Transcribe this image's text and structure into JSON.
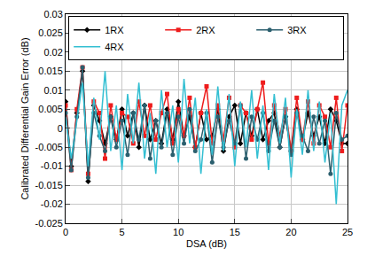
{
  "chart_data": {
    "type": "line",
    "x_label": "DSA (dB)",
    "y_label": "Calibrated Differential Gain Error (dB)",
    "x": [
      0,
      0.5,
      1,
      1.5,
      2,
      2.5,
      3,
      3.5,
      4,
      4.5,
      5,
      5.5,
      6,
      6.5,
      7,
      7.5,
      8,
      8.5,
      9,
      9.5,
      10,
      10.5,
      11,
      11.5,
      12,
      12.5,
      13,
      13.5,
      14,
      14.5,
      15,
      15.5,
      16,
      16.5,
      17,
      17.5,
      18,
      18.5,
      19,
      19.5,
      20,
      20.5,
      21,
      21.5,
      22,
      22.5,
      23,
      23.5,
      24,
      24.5,
      25
    ],
    "series": [
      {
        "name": "1RX",
        "color": "#000000",
        "marker": "diamond",
        "values": [
          0.007,
          -0.01,
          0.004,
          0.015,
          -0.014,
          0.006,
          0.002,
          -0.004,
          0.003,
          -0.003,
          0.005,
          -0.002,
          0.004,
          -0.005,
          0.006,
          -0.003,
          0.002,
          -0.004,
          0.005,
          -0.003,
          0.007,
          -0.002,
          0.003,
          -0.005,
          0.004,
          -0.003,
          -0.002,
          0.005,
          -0.006,
          0.003,
          0.006,
          -0.004,
          0.004,
          -0.002,
          0.005,
          -0.003,
          0.002,
          0.004,
          -0.005,
          0.003,
          -0.006,
          0.005,
          -0.003,
          0.004,
          -0.002,
          0.003,
          -0.004,
          0.005,
          0.002,
          -0.004,
          -0.004
        ]
      },
      {
        "name": "2RX",
        "color": "#ee1c1c",
        "marker": "square",
        "values": [
          0.006,
          -0.011,
          0.005,
          0.016,
          -0.012,
          0.007,
          0.004,
          -0.008,
          0.006,
          -0.003,
          0.004,
          0.003,
          -0.004,
          0.007,
          -0.002,
          0.006,
          -0.003,
          0.004,
          0.009,
          -0.004,
          0.005,
          -0.002,
          0.008,
          -0.005,
          0.004,
          0.011,
          -0.004,
          0.006,
          -0.003,
          0.008,
          -0.005,
          0.006,
          0.004,
          -0.003,
          0.005,
          0.012,
          -0.004,
          0.006,
          -0.002,
          0.005,
          -0.006,
          0.008,
          -0.003,
          0.007,
          -0.004,
          0.006,
          0.003,
          -0.005,
          0.008,
          -0.006,
          0.006
        ]
      },
      {
        "name": "3RX",
        "color": "#2b5f6e",
        "marker": "circle",
        "values": [
          0.004,
          -0.011,
          0.003,
          0.016,
          -0.013,
          0.004,
          -0.002,
          -0.006,
          0.003,
          -0.005,
          0.002,
          -0.007,
          0.004,
          -0.003,
          0.006,
          -0.008,
          0.002,
          -0.005,
          0.004,
          -0.007,
          0.003,
          -0.004,
          0.005,
          -0.006,
          -0.003,
          0.004,
          -0.009,
          0.003,
          -0.005,
          0.002,
          -0.004,
          0.006,
          -0.008,
          0.003,
          -0.003,
          0.004,
          -0.006,
          0.002,
          -0.005,
          0.003,
          -0.007,
          0.004,
          -0.002,
          -0.006,
          0.003,
          -0.004,
          0.002,
          -0.012,
          0.004,
          -0.003,
          -0.002
        ]
      },
      {
        "name": "4RX",
        "color": "#33bfd2",
        "marker": "none",
        "values": [
          0.003,
          -0.008,
          0.002,
          0.012,
          -0.01,
          0.008,
          -0.003,
          0.015,
          -0.006,
          0.006,
          -0.011,
          0.009,
          -0.004,
          0.012,
          -0.008,
          0.004,
          -0.012,
          0.01,
          -0.005,
          0.006,
          -0.009,
          0.013,
          -0.004,
          0.008,
          -0.012,
          0.005,
          -0.007,
          0.011,
          -0.006,
          0.009,
          -0.01,
          0.007,
          -0.005,
          0.01,
          -0.008,
          0.006,
          -0.011,
          0.009,
          -0.004,
          0.008,
          -0.013,
          0.005,
          -0.007,
          0.01,
          -0.006,
          0.007,
          -0.009,
          0.004,
          -0.02,
          0.006,
          0.01
        ]
      }
    ],
    "xlim": [
      0,
      25
    ],
    "xticks": [
      0,
      5,
      10,
      15,
      20,
      25
    ],
    "ylim": [
      -0.025,
      0.03
    ],
    "yticks": [
      -0.025,
      -0.02,
      -0.015,
      -0.01,
      -0.005,
      0,
      0.005,
      0.01,
      0.015,
      0.02,
      0.025,
      0.03
    ],
    "grid": true,
    "legend": "upper left"
  }
}
